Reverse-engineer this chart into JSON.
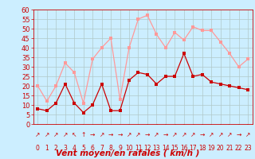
{
  "x": [
    0,
    1,
    2,
    3,
    4,
    5,
    6,
    7,
    8,
    9,
    10,
    11,
    12,
    13,
    14,
    15,
    16,
    17,
    18,
    19,
    20,
    21,
    22,
    23
  ],
  "wind_mean": [
    8,
    7,
    11,
    21,
    11,
    6,
    10,
    21,
    7,
    7,
    23,
    27,
    26,
    21,
    25,
    25,
    37,
    25,
    26,
    22,
    21,
    20,
    19,
    18
  ],
  "wind_gust": [
    20,
    12,
    20,
    32,
    27,
    11,
    34,
    40,
    45,
    13,
    40,
    55,
    57,
    47,
    40,
    48,
    44,
    51,
    49,
    49,
    43,
    37,
    30,
    34
  ],
  "xlabel": "Vent moyen/en rafales ( km/h )",
  "ylim": [
    0,
    60
  ],
  "yticks": [
    0,
    5,
    10,
    15,
    20,
    25,
    30,
    35,
    40,
    45,
    50,
    55,
    60
  ],
  "bg_color": "#cceeff",
  "grid_color": "#b0c8c8",
  "line_color_mean": "#cc0000",
  "line_color_gust": "#ff9999",
  "marker_size": 2.5,
  "xlabel_color": "#cc0000",
  "xlabel_fontsize": 7.5,
  "ytick_fontsize": 6,
  "xtick_fontsize": 5.5,
  "arrow_labels": [
    "↗",
    "↗",
    "↗",
    "↗",
    "↖",
    "↑",
    "→",
    "↗",
    "→",
    "→",
    "↗",
    "↗",
    "→",
    "↗",
    "→",
    "↗",
    "↗",
    "↗",
    "→",
    "↗",
    "↗",
    "↗",
    "→",
    "↗"
  ]
}
